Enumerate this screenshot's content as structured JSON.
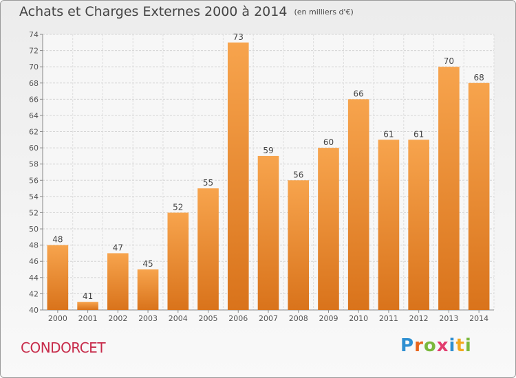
{
  "header": {
    "title": "Achats et Charges Externes 2000 à 2014",
    "unit": "(en milliers d'€)"
  },
  "footer": {
    "commune": "CONDORCET",
    "logo": "Proxiti"
  },
  "colors": {
    "bar_top": "#f7a44d",
    "bar_bottom": "#d9731b",
    "title": "#444444",
    "commune": "#c72b4a"
  },
  "chart_data": {
    "type": "bar",
    "title": "Achats et Charges Externes 2000 à 2014",
    "subtitle": "(en milliers d'€)",
    "xlabel": "",
    "ylabel": "",
    "categories": [
      "2000",
      "2001",
      "2002",
      "2003",
      "2004",
      "2005",
      "2006",
      "2007",
      "2008",
      "2009",
      "2010",
      "2011",
      "2012",
      "2013",
      "2014"
    ],
    "values": [
      48,
      41,
      47,
      45,
      52,
      55,
      73,
      59,
      56,
      60,
      66,
      61,
      61,
      70,
      68
    ],
    "ylim": [
      40,
      74
    ],
    "yticks": [
      40,
      42,
      44,
      46,
      48,
      50,
      52,
      54,
      56,
      58,
      60,
      62,
      64,
      66,
      68,
      70,
      72,
      74
    ],
    "grid": true,
    "data_labels": true
  }
}
